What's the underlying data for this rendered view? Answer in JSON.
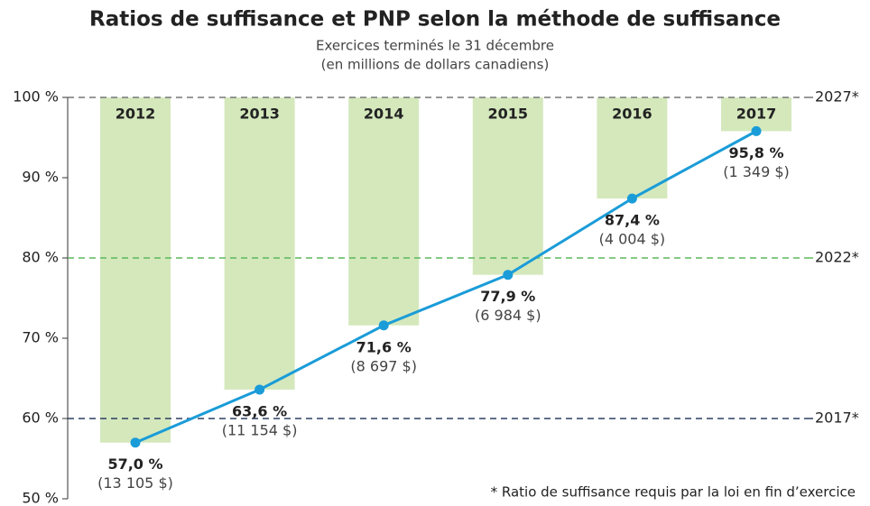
{
  "chart_data": {
    "type": "line",
    "title": "Ratios de suffisance et PNP selon la méthode de suffisance",
    "subtitle": [
      "Exercices terminés le 31 décembre",
      "(en millions de dollars canadiens)"
    ],
    "categories": [
      "2012",
      "2013",
      "2014",
      "2015",
      "2016",
      "2017"
    ],
    "values": [
      57.0,
      63.6,
      71.6,
      77.9,
      87.4,
      95.8
    ],
    "value_labels": [
      "57,0 %",
      "63,6 %",
      "71,6 %",
      "77,9 %",
      "87,4 %",
      "95,8 %"
    ],
    "amount_labels": [
      "(13 105 $)",
      "(11 154 $)",
      "(8 697 $)",
      "(6 984 $)",
      "(4 004 $)",
      "(1 349 $)"
    ],
    "color": "#1a9cd8",
    "bar_color": "#d4e8bc",
    "ylim": [
      50,
      100
    ],
    "yticks": [
      {
        "value": 50,
        "label": "50 %"
      },
      {
        "value": 60,
        "label": "60 %"
      },
      {
        "value": 70,
        "label": "70 %"
      },
      {
        "value": 80,
        "label": "80 %"
      },
      {
        "value": 90,
        "label": "90 %"
      },
      {
        "value": 100,
        "label": "100 %"
      }
    ],
    "reference_lines": [
      {
        "value": 100,
        "label": "2027*",
        "color": "#777777"
      },
      {
        "value": 80,
        "label": "2022*",
        "color": "#5cb85c"
      },
      {
        "value": 60,
        "label": "2017*",
        "color": "#2c3e60"
      }
    ],
    "footnote": "* Ratio de suffisance requis par la loi en fin d’exercice"
  }
}
